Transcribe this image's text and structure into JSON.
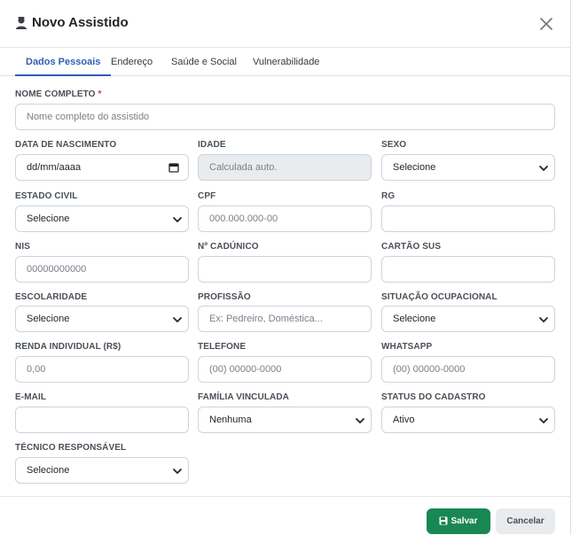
{
  "header": {
    "title": "Novo Assistido",
    "icon": "user-icon",
    "close_icon": "close-icon"
  },
  "tabs": [
    {
      "label": "Dados Pessoais",
      "active": true
    },
    {
      "label": "Endereço",
      "active": false
    },
    {
      "label": "Saúde e Social",
      "active": false
    },
    {
      "label": "Vulnerabilidade",
      "active": false
    }
  ],
  "fields": {
    "nome": {
      "label": "NOME COMPLETO",
      "required_mark": "*",
      "placeholder": "Nome completo do assistido"
    },
    "nascimento": {
      "label": "DATA DE NASCIMENTO",
      "value": "dd/mm/aaaa"
    },
    "idade": {
      "label": "IDADE",
      "placeholder": "Calculada auto."
    },
    "sexo": {
      "label": "SEXO",
      "value": "Selecione"
    },
    "estado_civil": {
      "label": "ESTADO CIVIL",
      "value": "Selecione"
    },
    "cpf": {
      "label": "CPF",
      "placeholder": "000.000.000-00"
    },
    "rg": {
      "label": "RG",
      "placeholder": ""
    },
    "nis": {
      "label": "NIS",
      "placeholder": "00000000000"
    },
    "cadunico": {
      "label": "Nº CADÚNICO",
      "placeholder": ""
    },
    "cartao_sus": {
      "label": "CARTÃO SUS",
      "placeholder": ""
    },
    "escolaridade": {
      "label": "ESCOLARIDADE",
      "value": "Selecione"
    },
    "profissao": {
      "label": "PROFISSÃO",
      "placeholder": "Ex: Pedreiro, Doméstica..."
    },
    "situacao": {
      "label": "SITUAÇÃO OCUPACIONAL",
      "value": "Selecione"
    },
    "renda": {
      "label": "RENDA INDIVIDUAL (R$)",
      "placeholder": "0,00"
    },
    "telefone": {
      "label": "TELEFONE",
      "placeholder": "(00) 00000-0000"
    },
    "whatsapp": {
      "label": "WHATSAPP",
      "placeholder": "(00) 00000-0000"
    },
    "email": {
      "label": "E-MAIL",
      "placeholder": ""
    },
    "familia": {
      "label": "FAMÍLIA VINCULADA",
      "value": "Nenhuma"
    },
    "status": {
      "label": "STATUS DO CADASTRO",
      "value": "Ativo"
    },
    "tecnico": {
      "label": "TÉCNICO RESPONSÁVEL",
      "value": "Selecione"
    }
  },
  "footer": {
    "save_label": "Salvar",
    "cancel_label": "Cancelar",
    "save_icon": "floppy-disk-icon"
  },
  "colors": {
    "accent": "#2f5fb3",
    "save": "#198754",
    "required": "#dc3545",
    "readonly_bg": "#e9ecef"
  }
}
